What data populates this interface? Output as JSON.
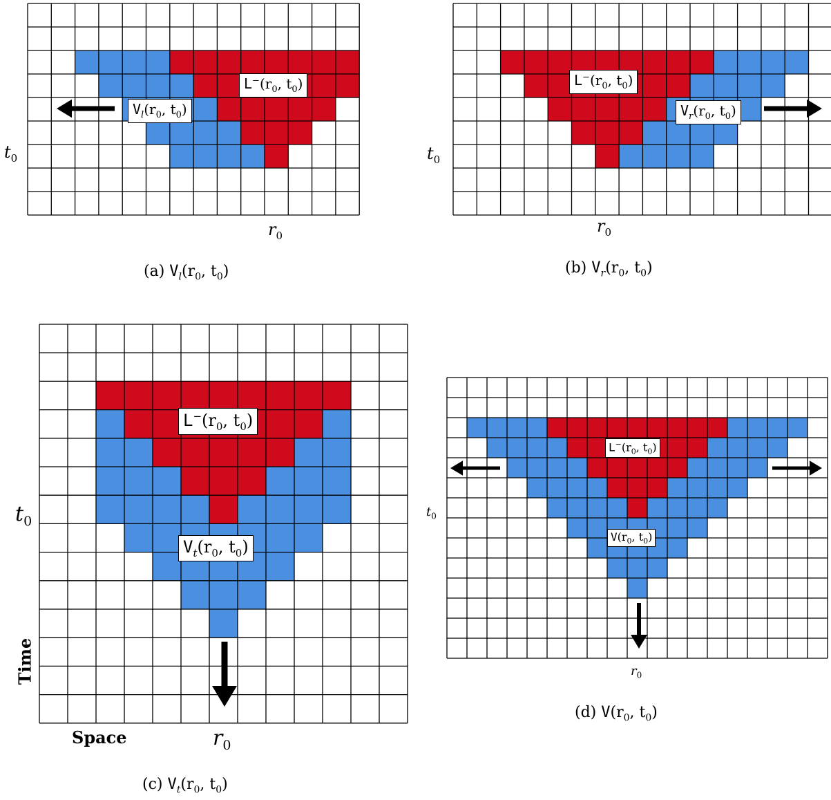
{
  "colors": {
    "red": "#cf0a1d",
    "blue": "#4a8fe0",
    "grid": "#000000",
    "arrow": "#000000"
  },
  "panels": [
    {
      "id": "a",
      "caption": {
        "prefix": "(a) ",
        "main": "V",
        "sub": "l",
        "args": "(r",
        "args_sub": "0",
        "args2": ", t",
        "args2_sub": "0",
        "close": ")"
      },
      "region_label": {
        "main": "L",
        "sup": "−",
        "args": "(r",
        "args_sub": "0",
        "args2": ", t",
        "args2_sub": "0",
        "close": ")"
      },
      "view_label": {
        "main": "V",
        "sub": "l",
        "args": "(r",
        "args_sub": "0",
        "args2": ", t",
        "args2_sub": "0",
        "close": ")"
      },
      "time_marker": {
        "main": "t",
        "sub": "0"
      },
      "space_marker": {
        "main": "r",
        "sub": "0"
      },
      "arrow_direction": "left"
    },
    {
      "id": "b",
      "caption": {
        "prefix": "(b) ",
        "main": "V",
        "sub": "r",
        "args": "(r",
        "args_sub": "0",
        "args2": ", t",
        "args2_sub": "0",
        "close": ")"
      },
      "region_label": {
        "main": "L",
        "sup": "−",
        "args": "(r",
        "args_sub": "0",
        "args2": ", t",
        "args2_sub": "0",
        "close": ")"
      },
      "view_label": {
        "main": "V",
        "sub": "r",
        "args": "(r",
        "args_sub": "0",
        "args2": ", t",
        "args2_sub": "0",
        "close": ")"
      },
      "time_marker": {
        "main": "t",
        "sub": "0"
      },
      "space_marker": {
        "main": "r",
        "sub": "0"
      },
      "arrow_direction": "right"
    },
    {
      "id": "c",
      "caption": {
        "prefix": "(c) ",
        "main": "V",
        "sub": "t",
        "args": "(r",
        "args_sub": "0",
        "args2": ", t",
        "args2_sub": "0",
        "close": ")"
      },
      "region_label": {
        "main": "L",
        "sup": "−",
        "args": "(r",
        "args_sub": "0",
        "args2": ", t",
        "args2_sub": "0",
        "close": ")"
      },
      "view_label": {
        "main": "V",
        "sub": "t",
        "args": "(r",
        "args_sub": "0",
        "args2": ", t",
        "args2_sub": "0",
        "close": ")"
      },
      "time_marker": {
        "main": "t",
        "sub": "0"
      },
      "space_marker": {
        "main": "r",
        "sub": "0"
      },
      "axis_time": "Time",
      "axis_space": "Space",
      "arrow_direction": "down"
    },
    {
      "id": "d",
      "caption": {
        "prefix": "(d) ",
        "main": "V",
        "sub": "",
        "args": "(r",
        "args_sub": "0",
        "args2": ", t",
        "args2_sub": "0",
        "close": ")"
      },
      "region_label": {
        "main": "L",
        "sup": "−",
        "args": "(r",
        "args_sub": "0",
        "args2": ", t",
        "args2_sub": "0",
        "close": ")"
      },
      "view_label": {
        "main": "V",
        "sub": "",
        "args": "(r",
        "args_sub": "0",
        "args2": ", t",
        "args2_sub": "0",
        "close": ")"
      },
      "time_marker": {
        "main": "t",
        "sub": "0"
      },
      "space_marker": {
        "main": "r",
        "sub": "0"
      },
      "arrow_direction": "left, right, down"
    }
  ]
}
